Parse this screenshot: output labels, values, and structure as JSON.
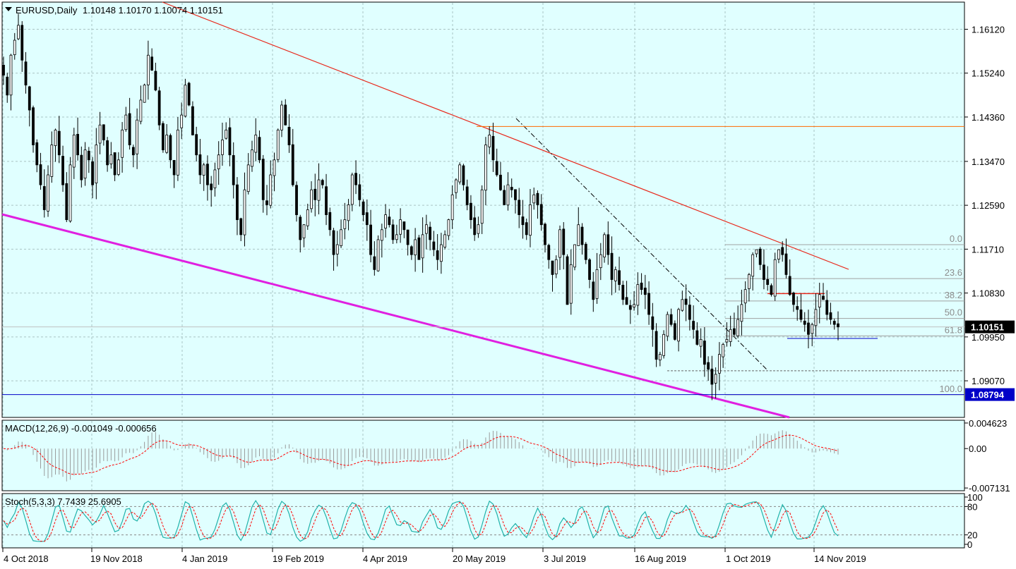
{
  "header": {
    "symbol": "EURUSD,Daily",
    "ohlc": "1.10148 1.10170 1.10074 1.10151",
    "macd": "MACD(12,26,9) -0.001049 -0.000656",
    "stoch": "Stoch(5,3,3) 7.7439 25.6905"
  },
  "colors": {
    "background": "#e0ffff",
    "grid": "#a9c4c4",
    "candle": "#000000",
    "resistance_line": "#e8291c",
    "support_line": "#e020e0",
    "level_line": "#ff6a00",
    "fib_line": "#a0a0a0",
    "low_line": "#0000c8",
    "macd_signal": "#ff0000",
    "stoch_main": "#20b2aa"
  },
  "chart_data": [
    {
      "type": "candlestick",
      "pane": "price",
      "ylim": [
        1.0835,
        1.1665
      ],
      "price_ticks": [
        "1.16120",
        "1.15240",
        "1.14360",
        "1.13470",
        "1.12590",
        "1.11710",
        "1.10830",
        "1.09950",
        "1.09070"
      ],
      "date_labels": [
        "4 Oct 2018",
        "19 Nov 2018",
        "4 Jan 2019",
        "19 Feb 2019",
        "4 Apr 2019",
        "20 May 2019",
        "3 Jul 2019",
        "16 Aug 2019",
        "1 Oct 2019",
        "14 Nov 2019"
      ],
      "current_price": "1.10151",
      "low_price": "1.08794",
      "fib_levels": [
        {
          "label": "0.0",
          "price": 1.118
        },
        {
          "label": "23.6",
          "price": 1.1112
        },
        {
          "label": "38.2",
          "price": 1.1067
        },
        {
          "label": "50.0",
          "price": 1.1032
        },
        {
          "label": "61.8",
          "price": 1.0997
        },
        {
          "label": "100.0",
          "price": 1.0879
        }
      ],
      "horizontal_levels": [
        {
          "name": "resistance-level",
          "price": 1.1417
        },
        {
          "name": "local-support",
          "price": 1.0992
        },
        {
          "name": "local-resistance",
          "price": 1.1082
        },
        {
          "name": "aug-low",
          "price": 1.0927
        }
      ],
      "closes": [
        1.152,
        1.148,
        1.156,
        1.159,
        1.162,
        1.155,
        1.15,
        1.145,
        1.138,
        1.134,
        1.13,
        1.125,
        1.132,
        1.138,
        1.141,
        1.136,
        1.13,
        1.123,
        1.134,
        1.14,
        1.136,
        1.131,
        1.137,
        1.135,
        1.13,
        1.138,
        1.142,
        1.139,
        1.134,
        1.136,
        1.132,
        1.135,
        1.141,
        1.144,
        1.138,
        1.136,
        1.143,
        1.147,
        1.15,
        1.156,
        1.153,
        1.149,
        1.142,
        1.137,
        1.14,
        1.135,
        1.132,
        1.141,
        1.144,
        1.15,
        1.146,
        1.14,
        1.136,
        1.132,
        1.134,
        1.13,
        1.129,
        1.133,
        1.136,
        1.139,
        1.141,
        1.136,
        1.13,
        1.123,
        1.12,
        1.129,
        1.134,
        1.137,
        1.14,
        1.135,
        1.127,
        1.126,
        1.132,
        1.135,
        1.141,
        1.146,
        1.142,
        1.138,
        1.13,
        1.124,
        1.119,
        1.122,
        1.125,
        1.129,
        1.127,
        1.131,
        1.13,
        1.124,
        1.121,
        1.116,
        1.118,
        1.121,
        1.123,
        1.126,
        1.132,
        1.13,
        1.127,
        1.124,
        1.122,
        1.116,
        1.113,
        1.119,
        1.121,
        1.124,
        1.122,
        1.119,
        1.12,
        1.123,
        1.121,
        1.118,
        1.116,
        1.119,
        1.115,
        1.12,
        1.122,
        1.119,
        1.117,
        1.115,
        1.118,
        1.12,
        1.123,
        1.128,
        1.131,
        1.134,
        1.13,
        1.126,
        1.123,
        1.12,
        1.122,
        1.129,
        1.138,
        1.14,
        1.135,
        1.132,
        1.129,
        1.126,
        1.13,
        1.129,
        1.127,
        1.124,
        1.122,
        1.12,
        1.126,
        1.128,
        1.126,
        1.122,
        1.118,
        1.115,
        1.112,
        1.115,
        1.121,
        1.116,
        1.106,
        1.114,
        1.118,
        1.122,
        1.118,
        1.115,
        1.111,
        1.107,
        1.113,
        1.116,
        1.12,
        1.116,
        1.111,
        1.113,
        1.11,
        1.107,
        1.106,
        1.105,
        1.106,
        1.11,
        1.109,
        1.108,
        1.104,
        1.101,
        1.095,
        1.096,
        1.1,
        1.104,
        1.102,
        1.099,
        1.105,
        1.107,
        1.106,
        1.103,
        1.101,
        1.098,
        1.099,
        1.094,
        1.093,
        1.09,
        1.092,
        1.096,
        1.098,
        1.099,
        1.101,
        1.1,
        1.103,
        1.106,
        1.109,
        1.112,
        1.116,
        1.117,
        1.114,
        1.111,
        1.11,
        1.108,
        1.115,
        1.117,
        1.116,
        1.112,
        1.108,
        1.106,
        1.105,
        1.103,
        1.102,
        1.1,
        1.102,
        1.105,
        1.108,
        1.107,
        1.104,
        1.103,
        1.102,
        1.1015
      ]
    },
    {
      "type": "bar+line",
      "pane": "macd",
      "yticks": [
        "0.004623",
        "0.00",
        "-0.007131"
      ],
      "ylim": [
        -0.0075,
        0.005
      ]
    },
    {
      "type": "line",
      "pane": "stochastic",
      "yticks": [
        "100",
        "80",
        "20",
        "0"
      ],
      "ylim": [
        0,
        100
      ]
    }
  ]
}
